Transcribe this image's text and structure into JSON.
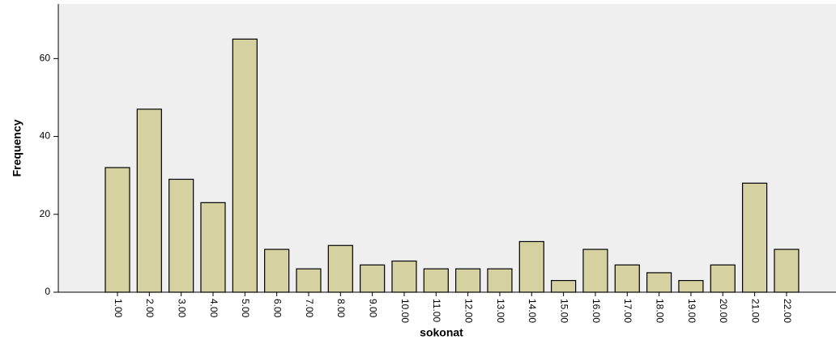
{
  "chart_data": {
    "type": "bar",
    "x_label": "sokonat",
    "y_label": "Frequency",
    "categories": [
      "1.00",
      "2.00",
      "3.00",
      "4.00",
      "5.00",
      "6.00",
      "7.00",
      "8.00",
      "9.00",
      "10.00",
      "11.00",
      "12.00",
      "13.00",
      "14.00",
      "15.00",
      "16.00",
      "17.00",
      "18.00",
      "19.00",
      "20.00",
      "21.00",
      "22.00"
    ],
    "values": [
      32,
      47,
      29,
      23,
      65,
      11,
      6,
      12,
      7,
      8,
      6,
      6,
      6,
      13,
      3,
      11,
      7,
      5,
      3,
      7,
      28,
      11
    ],
    "color": "#d6d1a0",
    "ylim": [
      0,
      74
    ],
    "yticks": [
      0,
      20,
      40,
      60
    ]
  }
}
